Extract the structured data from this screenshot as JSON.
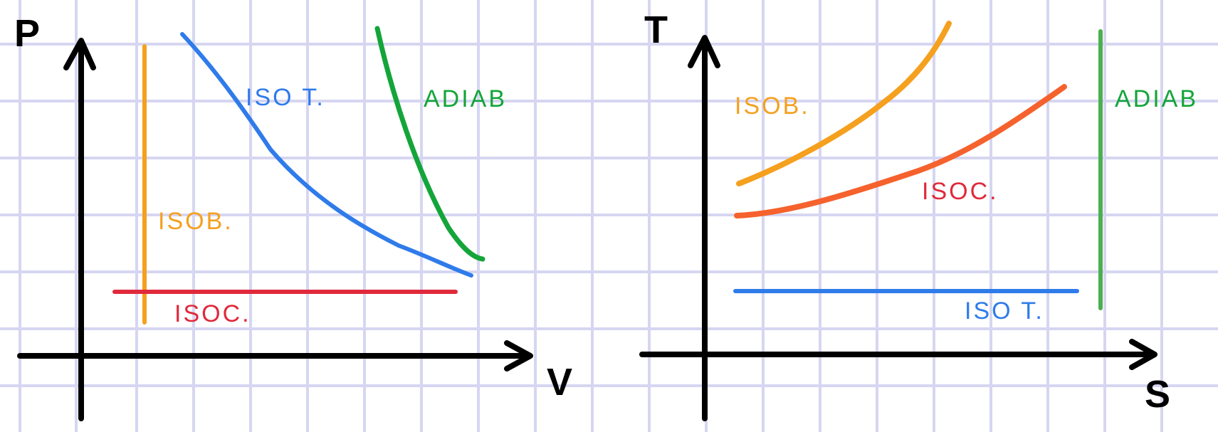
{
  "colors": {
    "grid": "#d6d6f2",
    "axis": "#000000",
    "isob": "#f5a01e",
    "isoc": "#e0293b",
    "isot": "#2f7bea",
    "adiab": "#14a53a",
    "isoc_ts": "#f5622d",
    "adiab_ts": "#4caf50"
  },
  "left_diagram": {
    "y_axis_label": "P",
    "x_axis_label": "V",
    "labels": {
      "isot": "ISO T.",
      "adiab": "ADIAB",
      "isob": "ISOB.",
      "isoc": "ISOC."
    }
  },
  "right_diagram": {
    "y_axis_label": "T",
    "x_axis_label": "S",
    "labels": {
      "isob": "ISOB.",
      "isoc": "ISOC.",
      "adiab": "ADIAB",
      "isot": "ISO T."
    }
  }
}
